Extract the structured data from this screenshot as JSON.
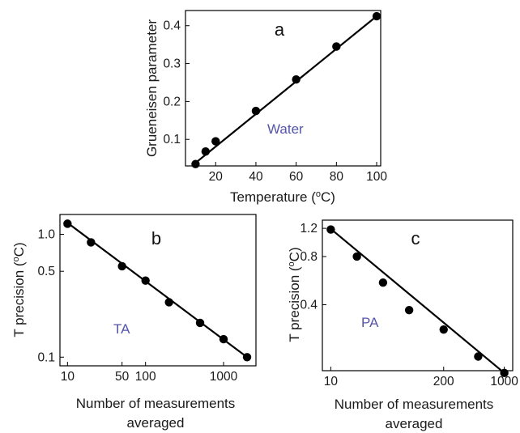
{
  "chart_data": [
    {
      "type": "line",
      "panel_label": "a",
      "annotation": "Water",
      "xlabel": "Temperature (°C)",
      "ylabel": "Grueneisen parameter",
      "xlim": [
        5,
        102
      ],
      "ylim": [
        0.03,
        0.44
      ],
      "xticks": [
        20,
        40,
        60,
        80,
        100
      ],
      "yticks": [
        0.1,
        0.2,
        0.3,
        0.4
      ],
      "ytick_labels": [
        "0.1",
        "0.2",
        "0.3",
        "0.4"
      ],
      "xscale": "linear",
      "yscale": "linear",
      "x": [
        10,
        15,
        20,
        40,
        60,
        80,
        100
      ],
      "y": [
        0.035,
        0.068,
        0.095,
        0.175,
        0.258,
        0.345,
        0.425
      ],
      "fit_line": [
        [
          10,
          0.038
        ],
        [
          100,
          0.425
        ]
      ]
    },
    {
      "type": "line",
      "panel_label": "b",
      "annotation": "TA",
      "xlabel": "Number of measurements averaged",
      "xlabel_lines": [
        "Number of measurements",
        "averaged"
      ],
      "ylabel": "T precision (°C)",
      "xscale": "log",
      "yscale": "log",
      "xlim": [
        8,
        2600
      ],
      "ylim": [
        0.085,
        1.45
      ],
      "xticks": [
        10,
        50,
        100,
        1000
      ],
      "xtick_labels": [
        "10",
        "50",
        "100",
        "1000"
      ],
      "yticks": [
        0.1,
        0.5,
        1.0
      ],
      "ytick_labels": [
        "0.1",
        "0.5",
        "1.0"
      ],
      "x": [
        10,
        20,
        50,
        100,
        200,
        500,
        1000,
        2000
      ],
      "y": [
        1.22,
        0.86,
        0.55,
        0.42,
        0.28,
        0.19,
        0.14,
        0.1
      ],
      "fit_line": [
        [
          10,
          1.24
        ],
        [
          2000,
          0.1
        ]
      ]
    },
    {
      "type": "line",
      "panel_label": "c",
      "annotation": "PA",
      "xlabel": "Number of measurements averaged",
      "xlabel_lines": [
        "Number of measurements",
        "averaged"
      ],
      "ylabel": "T precision (°C)",
      "xscale": "log",
      "yscale": "log",
      "xlim": [
        8,
        1250
      ],
      "ylim": [
        0.155,
        1.35
      ],
      "xticks": [
        10,
        200,
        1000
      ],
      "xtick_labels": [
        "10",
        "200",
        "1000"
      ],
      "yticks": [
        0.4,
        0.8,
        1.2
      ],
      "ytick_labels": [
        "0.4",
        "0.8",
        "1.2"
      ],
      "x": [
        10,
        20,
        40,
        80,
        200,
        500,
        1000
      ],
      "y": [
        1.18,
        0.8,
        0.55,
        0.37,
        0.28,
        0.19,
        0.15
      ],
      "fit_line": [
        [
          10,
          1.19
        ],
        [
          1000,
          0.15
        ]
      ]
    }
  ]
}
